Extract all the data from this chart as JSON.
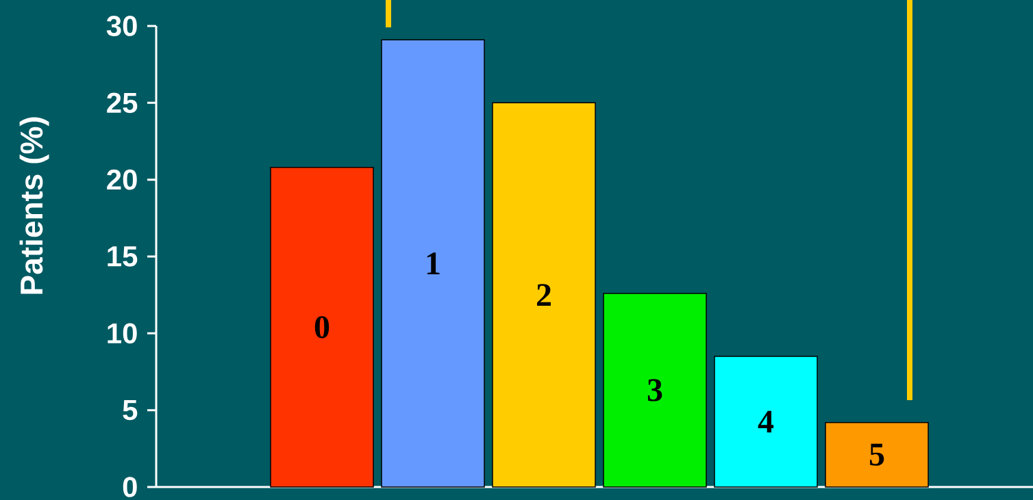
{
  "chart_data": {
    "type": "bar",
    "ylabel": "Patients (%)",
    "categories": [
      "0",
      "1",
      "2",
      "3",
      "4",
      "5"
    ],
    "values": [
      20.8,
      29.1,
      25.0,
      12.6,
      8.5,
      4.2
    ],
    "colors": [
      "#ff3300",
      "#6699ff",
      "#ffcc00",
      "#00ee00",
      "#00ffff",
      "#ff9900"
    ],
    "ylim": [
      0,
      30
    ],
    "yticks": [
      0,
      5,
      10,
      15,
      20,
      25,
      30
    ]
  }
}
